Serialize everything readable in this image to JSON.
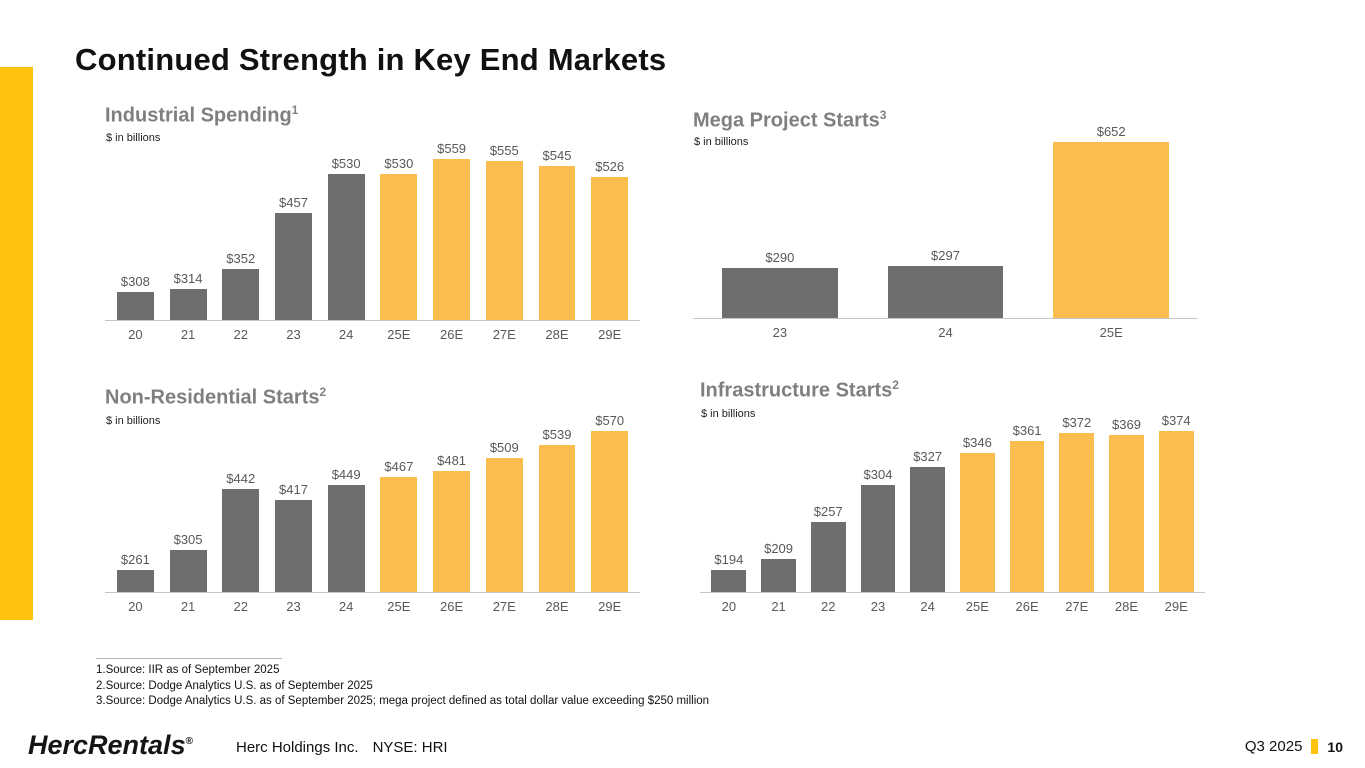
{
  "slide": {
    "title": "Continued Strength in Key End Markets",
    "footnotes": [
      "1.Source: IIR as of September 2025",
      "2.Source: Dodge Analytics U.S. as of September 2025",
      "3.Source: Dodge Analytics U.S. as of September 2025; mega project defined as total dollar value exceeding $250 million"
    ],
    "footer": {
      "logo_herc": "Herc",
      "logo_rentals": "Rentals",
      "logo_reg": "®",
      "company": "Herc Holdings Inc.",
      "ticker": "NYSE: HRI",
      "quarter": "Q3 2025",
      "page_number": "10"
    },
    "colors": {
      "accent_yellow": "#FFC20E",
      "bar_yellow": "#FBBE4E",
      "bar_gray": "#6E6E6E",
      "chart_title_gray": "#7F7F7F",
      "label_gray": "#595959"
    }
  },
  "chart_data": [
    {
      "id": "industrial-spending",
      "type": "bar",
      "title": "Industrial Spending",
      "title_superscript": "1",
      "unit_label": "$ in billions",
      "categories": [
        "20",
        "21",
        "22",
        "23",
        "24",
        "25E",
        "26E",
        "27E",
        "28E",
        "29E"
      ],
      "values": [
        308,
        314,
        352,
        457,
        530,
        530,
        559,
        555,
        545,
        526
      ],
      "value_labels": [
        "$308",
        "$314",
        "$352",
        "$457",
        "$530",
        "$530",
        "$559",
        "$555",
        "$545",
        "$526"
      ],
      "historical_bar_count": 5,
      "ylim": [
        255,
        559
      ],
      "grid": false,
      "legend": "none"
    },
    {
      "id": "mega-project-starts",
      "type": "bar",
      "title": "Mega Project Starts",
      "title_superscript": "3",
      "unit_label": "$ in billions",
      "categories": [
        "23",
        "24",
        "25E"
      ],
      "values": [
        290,
        297,
        652
      ],
      "value_labels": [
        "$290",
        "$297",
        "$652"
      ],
      "historical_bar_count": 2,
      "ylim": [
        148,
        652
      ],
      "grid": false,
      "legend": "none"
    },
    {
      "id": "non-residential-starts",
      "type": "bar",
      "title": "Non-Residential Starts",
      "title_superscript": "2",
      "unit_label": "$ in billions",
      "categories": [
        "20",
        "21",
        "22",
        "23",
        "24",
        "25E",
        "26E",
        "27E",
        "28E",
        "29E"
      ],
      "values": [
        261,
        305,
        442,
        417,
        449,
        467,
        481,
        509,
        539,
        570
      ],
      "value_labels": [
        "$261",
        "$305",
        "$442",
        "$417",
        "$449",
        "$467",
        "$481",
        "$509",
        "$539",
        "$570"
      ],
      "historical_bar_count": 5,
      "ylim": [
        212,
        570
      ],
      "grid": false,
      "legend": "none"
    },
    {
      "id": "infrastructure-starts",
      "type": "bar",
      "title": "Infrastructure Starts",
      "title_superscript": "2",
      "unit_label": "$ in billions",
      "categories": [
        "20",
        "21",
        "22",
        "23",
        "24",
        "25E",
        "26E",
        "27E",
        "28E",
        "29E"
      ],
      "values": [
        194,
        209,
        257,
        304,
        327,
        346,
        361,
        372,
        369,
        374
      ],
      "value_labels": [
        "$194",
        "$209",
        "$257",
        "$304",
        "$327",
        "$346",
        "$361",
        "$372",
        "$369",
        "$374"
      ],
      "historical_bar_count": 5,
      "ylim": [
        166,
        374
      ],
      "grid": false,
      "legend": "none"
    }
  ]
}
